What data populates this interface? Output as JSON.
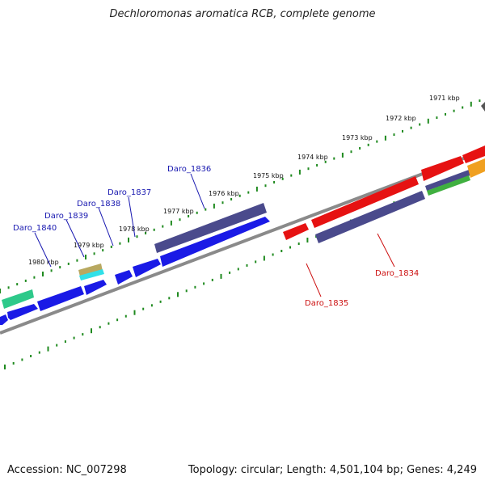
{
  "title": "Dechloromonas aromatica RCB, complete genome",
  "accession": "Accession: NC_007298",
  "info": "Topology: circular; Length: 4,501,104 bp; Genes: 4,249",
  "ticks": [
    "1971 kbp",
    "1972 kbp",
    "1973 kbp",
    "1974 kbp",
    "1975 kbp",
    "1976 kbp",
    "1977 kbp",
    "1978 kbp",
    "1979 kbp",
    "1980 kbp"
  ],
  "genes": [
    "Daro_1834",
    "Daro_1835",
    "Daro_1836",
    "Daro_1837",
    "Daro_1838",
    "Daro_1839",
    "Daro_1840"
  ],
  "colors": {
    "forward": "#1a1ae6",
    "reverse_red": "#e61212",
    "slate": "#4a4a8c",
    "teal": "#2ec98a",
    "khaki": "#b8a860",
    "cyan": "#30e0e8",
    "orange": "#f0a020",
    "green": "#40b040",
    "backbone": "#808080",
    "tick": "#1f8a1f",
    "label_forward": "#1818b0",
    "label_reverse": "#cc1010"
  }
}
